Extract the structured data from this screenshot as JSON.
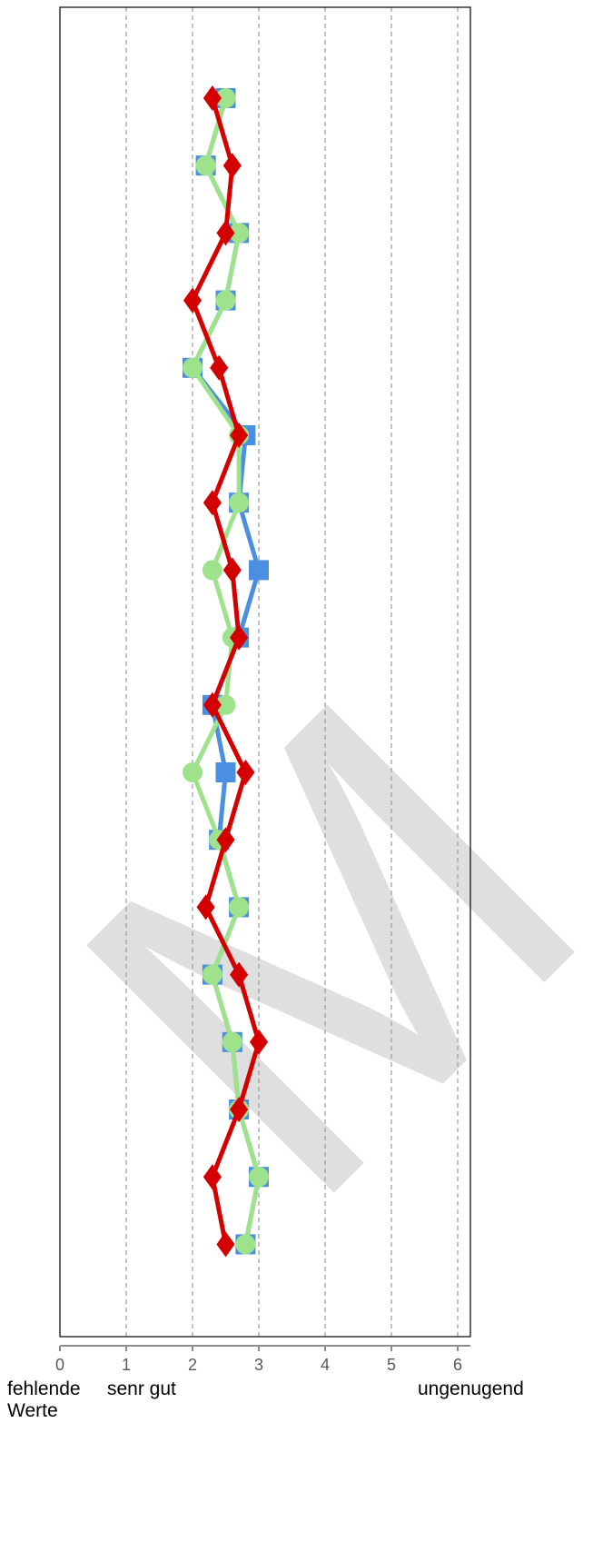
{
  "chart_data": {
    "type": "line",
    "orientation": "horizontal-value-axis",
    "xlim": [
      0,
      6.2
    ],
    "x_ticks": [
      "0",
      "1",
      "2",
      "3",
      "4",
      "5",
      "6"
    ],
    "grid": "vertical dashed",
    "watermark": "M",
    "scale_labels": {
      "left": "fehlende Werte",
      "good": "senr gut",
      "bad": "ungenugend"
    },
    "series": [
      {
        "color": "#4a8fe0",
        "marker": "square",
        "values": [
          2.5,
          2.2,
          2.7,
          2.5,
          2.0,
          2.8,
          2.7,
          3.0,
          2.7,
          2.3,
          2.5,
          2.4,
          2.7,
          2.3,
          2.6,
          2.7,
          3.0,
          2.8
        ]
      },
      {
        "color": "#9ee38c",
        "marker": "circle",
        "values": [
          2.5,
          2.2,
          2.7,
          2.5,
          2.0,
          2.7,
          2.7,
          2.3,
          2.6,
          2.5,
          2.0,
          2.4,
          2.7,
          2.3,
          2.6,
          2.7,
          3.0,
          2.8
        ]
      },
      {
        "color": "#d40000",
        "marker": "diamond",
        "values": [
          2.3,
          2.6,
          2.5,
          2.0,
          2.4,
          2.7,
          2.3,
          2.6,
          2.7,
          2.3,
          2.8,
          2.5,
          2.2,
          2.7,
          3.0,
          2.7,
          2.3,
          2.5
        ]
      }
    ]
  }
}
